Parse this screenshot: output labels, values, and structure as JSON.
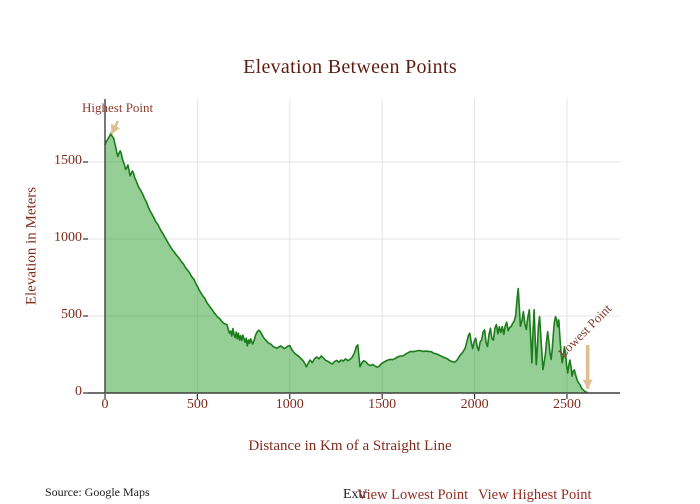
{
  "chart_data": {
    "type": "area",
    "title": "Elevation Between Points",
    "xlabel": "Distance in Km of a Straight Line",
    "ylabel": "Elevation in Meters",
    "xlim": [
      -92,
      2787
    ],
    "ylim": [
      0,
      1909
    ],
    "xticks": [
      0,
      500,
      1000,
      1500,
      2000,
      2500
    ],
    "yticks": [
      0,
      500,
      1000,
      1500
    ],
    "grid": true,
    "legend": false,
    "series": [
      {
        "name": "Elevation",
        "x": [
          0,
          8,
          15,
          22,
          28,
          32,
          36,
          42,
          47,
          52,
          58,
          64,
          70,
          76,
          82,
          88,
          94,
          100,
          106,
          112,
          118,
          124,
          130,
          136,
          142,
          148,
          154,
          160,
          168,
          176,
          184,
          192,
          205,
          215,
          225,
          235,
          245,
          255,
          265,
          275,
          285,
          295,
          305,
          315,
          325,
          335,
          345,
          355,
          365,
          375,
          385,
          395,
          405,
          415,
          425,
          432,
          440,
          448,
          455,
          462,
          468,
          474,
          480,
          486,
          492,
          500,
          510,
          520,
          530,
          540,
          550,
          560,
          570,
          580,
          590,
          600,
          610,
          620,
          630,
          640,
          650,
          660,
          668,
          674,
          680,
          686,
          692,
          698,
          704,
          710,
          716,
          722,
          728,
          734,
          740,
          746,
          752,
          758,
          764,
          770,
          776,
          782,
          788,
          794,
          800,
          808,
          816,
          824,
          832,
          840,
          848,
          856,
          864,
          872,
          880,
          888,
          896,
          904,
          912,
          920,
          930,
          940,
          950,
          960,
          970,
          980,
          990,
          1000,
          1012,
          1024,
          1036,
          1048,
          1060,
          1072,
          1084,
          1090,
          1100,
          1110,
          1122,
          1134,
          1146,
          1158,
          1170,
          1182,
          1194,
          1206,
          1218,
          1230,
          1242,
          1254,
          1266,
          1278,
          1290,
          1302,
          1314,
          1326,
          1338,
          1350,
          1360,
          1368,
          1374,
          1380,
          1390,
          1400,
          1412,
          1424,
          1436,
          1448,
          1460,
          1472,
          1484,
          1496,
          1508,
          1520,
          1532,
          1544,
          1556,
          1570,
          1584,
          1598,
          1612,
          1626,
          1640,
          1654,
          1668,
          1682,
          1696,
          1710,
          1724,
          1738,
          1752,
          1766,
          1780,
          1794,
          1808,
          1822,
          1836,
          1850,
          1864,
          1878,
          1892,
          1906,
          1920,
          1934,
          1948,
          1958,
          1966,
          1974,
          1982,
          1990,
          1998,
          2006,
          2014,
          2022,
          2030,
          2038,
          2046,
          2054,
          2062,
          2070,
          2078,
          2086,
          2094,
          2102,
          2110,
          2118,
          2126,
          2134,
          2142,
          2150,
          2158,
          2166,
          2174,
          2182,
          2190,
          2198,
          2206,
          2214,
          2222,
          2230,
          2236,
          2242,
          2248,
          2256,
          2264,
          2272,
          2280,
          2288,
          2296,
          2304,
          2310,
          2316,
          2322,
          2328,
          2334,
          2340,
          2346,
          2352,
          2358,
          2364,
          2370,
          2378,
          2384,
          2390,
          2396,
          2402,
          2408,
          2414,
          2420,
          2426,
          2432,
          2438,
          2444,
          2450,
          2456,
          2462,
          2468,
          2474,
          2480,
          2486,
          2492,
          2498,
          2504,
          2510,
          2516,
          2522,
          2528,
          2534,
          2540,
          2546,
          2552,
          2558,
          2564,
          2572,
          2580,
          2590,
          2600,
          2612
        ],
        "y": [
          1612,
          1635,
          1648,
          1662,
          1675,
          1688,
          1672,
          1661,
          1654,
          1625,
          1598,
          1561,
          1536,
          1558,
          1572,
          1556,
          1518,
          1500,
          1478,
          1452,
          1462,
          1481,
          1446,
          1410,
          1424,
          1442,
          1428,
          1400,
          1380,
          1355,
          1332,
          1318,
          1288,
          1260,
          1238,
          1205,
          1180,
          1160,
          1136,
          1112,
          1096,
          1072,
          1050,
          1032,
          1010,
          988,
          966,
          948,
          930,
          915,
          898,
          884,
          868,
          850,
          838,
          820,
          808,
          795,
          786,
          770,
          758,
          748,
          741,
          726,
          710,
          692,
          668,
          648,
          630,
          614,
          590,
          572,
          556,
          540,
          522,
          508,
          492,
          484,
          468,
          455,
          448,
          444,
          410,
          388,
          402,
          370,
          418,
          380,
          360,
          396,
          352,
          388,
          344,
          372,
          340,
          376,
          352,
          330,
          356,
          306,
          344,
          322,
          352,
          334,
          318,
          346,
          380,
          398,
          408,
          400,
          382,
          364,
          350,
          342,
          330,
          322,
          318,
          310,
          300,
          296,
          290,
          298,
          306,
          298,
          288,
          296,
          304,
          308,
          280,
          262,
          248,
          238,
          224,
          210,
          186,
          170,
          196,
          214,
          196,
          222,
          234,
          222,
          240,
          228,
          212,
          206,
          196,
          188,
          204,
          212,
          200,
          214,
          208,
          222,
          210,
          218,
          232,
          262,
          300,
          312,
          240,
          170,
          196,
          210,
          202,
          186,
          178,
          186,
          176,
          168,
          174,
          190,
          200,
          208,
          214,
          218,
          216,
          224,
          234,
          240,
          240,
          252,
          262,
          270,
          268,
          272,
          276,
          274,
          270,
          272,
          270,
          268,
          258,
          254,
          246,
          238,
          230,
          224,
          212,
          204,
          200,
          214,
          242,
          262,
          288,
          330,
          372,
          388,
          330,
          288,
          336,
          356,
          300,
          276,
          330,
          344,
          396,
          410,
          330,
          302,
          380,
          420,
          352,
          344,
          420,
          444,
          384,
          430,
          392,
          432,
          382,
          436,
          460,
          404,
          426,
          432,
          452,
          466,
          500,
          612,
          678,
          560,
          434,
          468,
          528,
          452,
          412,
          490,
          540,
          360,
          196,
          400,
          540,
          350,
          184,
          300,
          440,
          496,
          380,
          270,
          152,
          210,
          258,
          340,
          398,
          330,
          260,
          218,
          280,
          380,
          460,
          496,
          478,
          430,
          474,
          360,
          260,
          196,
          240,
          300,
          260,
          180,
          130,
          180,
          214,
          170,
          110,
          140,
          150,
          120,
          96,
          76,
          64,
          50,
          30,
          18,
          8,
          2
        ]
      }
    ],
    "annotations": [
      {
        "text": "Highest Point",
        "x": 32,
        "y": 1688
      },
      {
        "text": "Lowest Point",
        "x": 2612,
        "y": 2,
        "rotation": -45
      }
    ]
  },
  "footer": {
    "source": "Source: Google Maps",
    "extremes_label": "Extr",
    "view_lowest": "View Lowest Point",
    "view_highest": "View Highest Point"
  },
  "colors": {
    "title_text": "#5f1d11",
    "axis_text": "#7f2b1d",
    "annotation_text": "#8a3c2c",
    "link_text": "#942e25",
    "source_text": "#1c1c1c",
    "line": "#1c7c1c",
    "fill": "rgba(44,160,44,0.5)",
    "grid": "#e4e4e4",
    "zeroline": "#3f3f3f",
    "tick_mark": "#333333",
    "arrow": "#dfbe8f"
  }
}
